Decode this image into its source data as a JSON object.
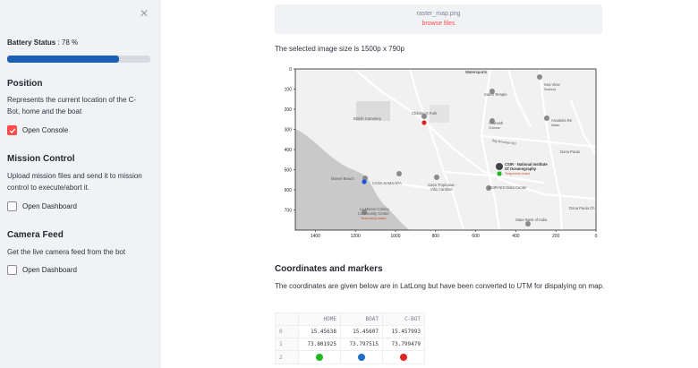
{
  "sidebar": {
    "battery_label": "Battery Status",
    "battery_value": ": 78 %",
    "battery_level": 0.78,
    "sections": [
      {
        "title": "Position",
        "desc": "Represents the current location of the C-Bot, home and the boat",
        "checkbox": "Open Console",
        "checked": true
      },
      {
        "title": "Mission Control",
        "desc": "Upload mission files and send it to mission control to execute/abort it.",
        "checkbox": "Open Dashboard",
        "checked": false
      },
      {
        "title": "Camera Feed",
        "desc": "Get the live camera feed from the bot",
        "checkbox": "Open Dashboard",
        "checked": false
      }
    ]
  },
  "main": {
    "upload": {
      "filename": "raster_map.png",
      "browse": "browse files"
    },
    "size_text": "The selected image size is 1500p x 790p",
    "coord_title": "Coordinates and markers",
    "coord_desc": "The coordinates are given below are in LatLong but have been converted to UTM for dispalying on map."
  },
  "map": {
    "y_ticks": [
      "0",
      "100",
      "200",
      "300",
      "400",
      "500",
      "600",
      "700"
    ],
    "x_ticks": [
      "1400",
      "1200",
      "1000",
      "800",
      "600",
      "400",
      "200",
      "0"
    ],
    "labels": {
      "watersports": "Watersports",
      "seaview": "Sea View",
      "seaview2": "Seafood",
      "sateri": "Sateri Temple",
      "childrens": "Children's Park",
      "british": "British Cemetery",
      "avanesh": "Avanesh",
      "avanesh2": "Chinese",
      "arcabela": "Arcabela Re",
      "arcabela2": "Italian",
      "bigmount": "Big Mountain Rd",
      "donapaula": "Dona Paula",
      "csir": "CSIR - National Institute",
      "csir2": "Of Oceanography",
      "csir3": "Temporarily closed",
      "marvel": "Marvel Beach",
      "samsara": "CASA SAMSARA",
      "tropicana": "Casa Tropicana -",
      "tropicana2": "Villa Caroline",
      "csirnio": "CSIR-NIO Data Center",
      "lamarvel": "La Marvel Colony",
      "lamarvel2": "Community Center",
      "lamarvel3": "Temporarily closed",
      "sbi": "State Bank of India",
      "donapaulach": "Dona Paula Ch"
    },
    "colors": {
      "home": "#22b822",
      "boat": "#1f4ee0",
      "cbot": "#e02424"
    }
  },
  "table": {
    "headers": [
      "HOME",
      "BOAT",
      "C-BOT"
    ],
    "rows": [
      {
        "idx": "0",
        "cells": [
          "15.45638",
          "15.45607",
          "15.457993"
        ]
      },
      {
        "idx": "1",
        "cells": [
          "73.801925",
          "73.797515",
          "73.799479"
        ]
      },
      {
        "idx": "2",
        "dots": [
          "#22b822",
          "#1e6ec8",
          "#e02424"
        ]
      }
    ]
  }
}
